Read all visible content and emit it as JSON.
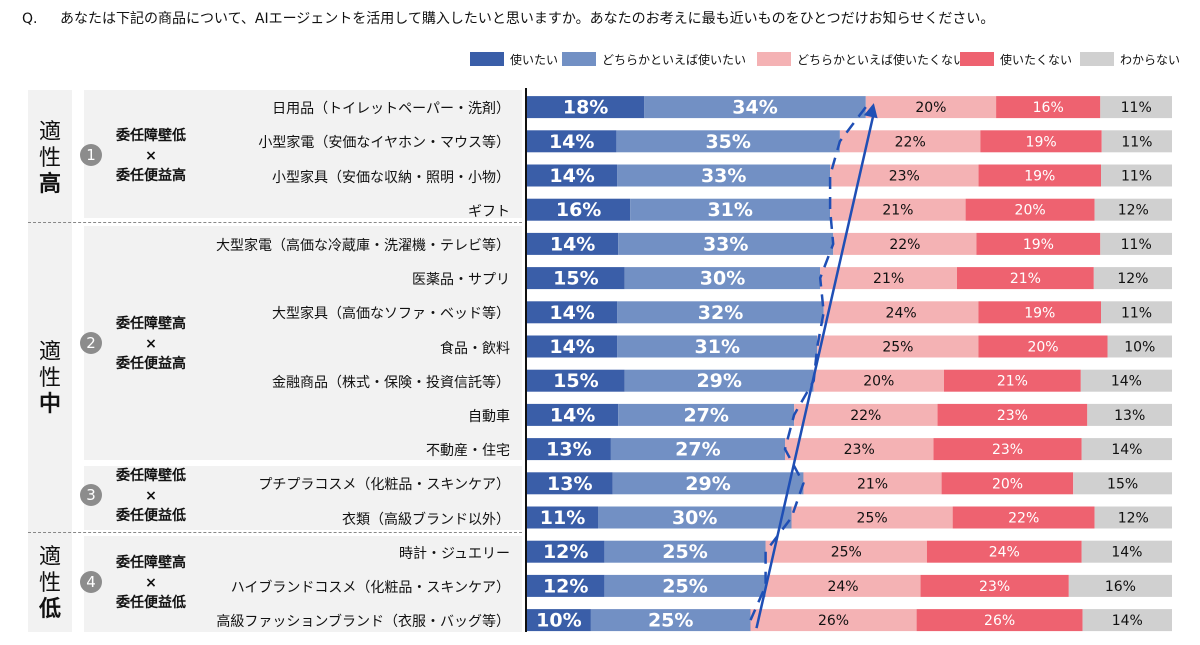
{
  "question": {
    "prefix": "Q.",
    "text": "あなたは下記の商品について、AIエージェントを活用して購入したいと思いますか。あなたのお考えに最も近いものをひとつだけお知らせください。"
  },
  "colors": {
    "use": "#3a5ea8",
    "somewhat_use": "#7290c4",
    "somewhat_not": "#f4b2b4",
    "not_use": "#ee6270",
    "unknown": "#d0d0d0",
    "arrow": "#1f4fb5"
  },
  "segments": [
    {
      "label_top": "適",
      "label_mid": "性",
      "label_big": "高"
    },
    {
      "label_top": "適",
      "label_mid": "性",
      "label_big": "中"
    },
    {
      "label_top": "適",
      "label_mid": "性",
      "label_big": "低"
    }
  ],
  "groups": [
    {
      "num": "1",
      "line1": "委任障壁低",
      "line2": "×",
      "line3": "委任便益高"
    },
    {
      "num": "2",
      "line1": "委任障壁高",
      "line2": "×",
      "line3": "委任便益高"
    },
    {
      "num": "3",
      "line1": "委任障壁低",
      "line2": "×",
      "line3": "委任便益低"
    },
    {
      "num": "4",
      "line1": "委任障壁高",
      "line2": "×",
      "line3": "委任便益低"
    }
  ],
  "chart_data": {
    "type": "bar",
    "orientation": "horizontal-stacked-100",
    "series_names": [
      "使いたい",
      "どちらかといえば使いたい",
      "どちらかといえば使いたくない",
      "使いたくない",
      "わからない"
    ],
    "categories": [
      "日用品（トイレットペーパー・洗剤）",
      "小型家電（安価なイヤホン・マウス等）",
      "小型家具（安価な収納・照明・小物）",
      "ギフト",
      "大型家電（高価な冷蔵庫・洗濯機・テレビ等）",
      "医薬品・サプリ",
      "大型家具（高価なソファ・ベッド等）",
      "食品・飲料",
      "金融商品（株式・保険・投資信託等）",
      "自動車",
      "不動産・住宅",
      "プチプラコスメ（化粧品・スキンケア）",
      "衣類（高級ブランド以外）",
      "時計・ジュエリー",
      "ハイブランドコスメ（化粧品・スキンケア）",
      "高級ファッションブランド（衣服・バッグ等）"
    ],
    "values": [
      [
        18,
        34,
        20,
        16,
        11
      ],
      [
        14,
        35,
        22,
        19,
        11
      ],
      [
        14,
        33,
        23,
        19,
        11
      ],
      [
        16,
        31,
        21,
        20,
        12
      ],
      [
        14,
        33,
        22,
        19,
        11
      ],
      [
        15,
        30,
        21,
        21,
        12
      ],
      [
        14,
        32,
        24,
        19,
        11
      ],
      [
        14,
        31,
        25,
        20,
        10
      ],
      [
        15,
        29,
        20,
        21,
        14
      ],
      [
        14,
        27,
        22,
        23,
        13
      ],
      [
        13,
        27,
        23,
        23,
        14
      ],
      [
        13,
        29,
        21,
        20,
        15
      ],
      [
        11,
        30,
        25,
        22,
        12
      ],
      [
        12,
        25,
        25,
        24,
        14
      ],
      [
        12,
        25,
        24,
        23,
        16
      ],
      [
        10,
        25,
        26,
        26,
        14
      ]
    ],
    "value_labels": [
      [
        "18%",
        "34%",
        "20%",
        "16%",
        "11%"
      ],
      [
        "14%",
        "35%",
        "22%",
        "19%",
        "11%"
      ],
      [
        "14%",
        "33%",
        "23%",
        "19%",
        "11%"
      ],
      [
        "16%",
        "31%",
        "21%",
        "20%",
        "12%"
      ],
      [
        "14%",
        "33%",
        "22%",
        "19%",
        "11%"
      ],
      [
        "15%",
        "30%",
        "21%",
        "21%",
        "12%"
      ],
      [
        "14%",
        "32%",
        "24%",
        "19%",
        "11%"
      ],
      [
        "14%",
        "31%",
        "25%",
        "20%",
        "10%"
      ],
      [
        "15%",
        "29%",
        "20%",
        "21%",
        "14%"
      ],
      [
        "14%",
        "27%",
        "22%",
        "23%",
        "13%"
      ],
      [
        "13%",
        "27%",
        "23%",
        "23%",
        "14%"
      ],
      [
        "13%",
        "29%",
        "21%",
        "20%",
        "15%"
      ],
      [
        "11%",
        "30%",
        "25%",
        "22%",
        "12%"
      ],
      [
        "12%",
        "25%",
        "25%",
        "24%",
        "14%"
      ],
      [
        "12%",
        "25%",
        "24%",
        "23%",
        "16%"
      ],
      [
        "10%",
        "25%",
        "26%",
        "26%",
        "14%"
      ]
    ],
    "xlim": [
      0,
      100
    ],
    "annotation": "dashed line connecting cumulative 使いたい+どちらかといえば使いたい share, with an upward arrow"
  }
}
